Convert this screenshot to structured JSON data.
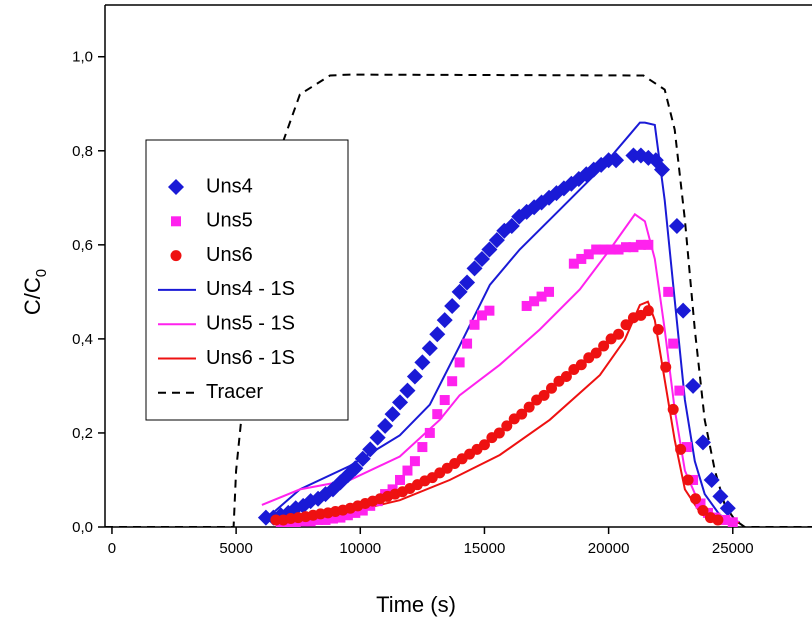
{
  "chart_data": {
    "type": "line",
    "xlabel": "Time (s)",
    "ylabel": "C/C",
    "ylabel_subscript": "0",
    "xlim": [
      -280,
      28190
    ],
    "ylim": [
      0,
      1.11
    ],
    "xticks": [
      0,
      5000,
      10000,
      15000,
      20000,
      25000
    ],
    "yticks": [
      {
        "value": 0,
        "label": "0,0"
      },
      {
        "value": 0.2,
        "label": "0,2"
      },
      {
        "value": 0.4,
        "label": "0,4"
      },
      {
        "value": 0.6,
        "label": "0,6"
      },
      {
        "value": 0.8,
        "label": "0,8"
      },
      {
        "value": 1.0,
        "label": "1,0"
      }
    ],
    "series": [
      {
        "name": "Uns4",
        "color": "#1a1ad6",
        "mode": "marker",
        "marker": "diamond",
        "x": [
          6200,
          6500,
          6800,
          7100,
          7400,
          7700,
          8000,
          8300,
          8600,
          8900,
          9200,
          9500,
          9800,
          10100,
          10400,
          10700,
          11000,
          11300,
          11600,
          11900,
          12200,
          12500,
          12800,
          13100,
          13400,
          13700,
          14000,
          14300,
          14600,
          14900,
          15200,
          15500,
          15800,
          16100,
          16400,
          16700,
          17000,
          17300,
          17600,
          17900,
          18200,
          18500,
          18800,
          19100,
          19400,
          19700,
          20000,
          20300,
          21000,
          21300,
          21600,
          21900,
          22150,
          22750,
          23000,
          23400,
          23800,
          24150,
          24500,
          24800
        ],
        "values": [
          0.02,
          0.02,
          0.025,
          0.03,
          0.04,
          0.045,
          0.055,
          0.06,
          0.07,
          0.08,
          0.095,
          0.11,
          0.125,
          0.145,
          0.165,
          0.19,
          0.215,
          0.24,
          0.265,
          0.29,
          0.32,
          0.35,
          0.38,
          0.41,
          0.44,
          0.47,
          0.5,
          0.52,
          0.55,
          0.57,
          0.59,
          0.61,
          0.63,
          0.64,
          0.66,
          0.67,
          0.68,
          0.69,
          0.7,
          0.71,
          0.72,
          0.73,
          0.74,
          0.75,
          0.76,
          0.77,
          0.78,
          0.78,
          0.79,
          0.79,
          0.785,
          0.78,
          0.76,
          0.64,
          0.46,
          0.3,
          0.18,
          0.1,
          0.065,
          0.04
        ]
      },
      {
        "name": "Uns5",
        "color": "#ff22ee",
        "mode": "marker",
        "marker": "square",
        "x": [
          6800,
          7100,
          7400,
          7700,
          8000,
          8300,
          8600,
          8900,
          9200,
          9500,
          9800,
          10100,
          10400,
          10700,
          11000,
          11300,
          11600,
          11900,
          12200,
          12500,
          12800,
          13100,
          13400,
          13700,
          14000,
          14300,
          14600,
          14900,
          15200,
          16700,
          17000,
          17300,
          17600,
          18600,
          18900,
          19200,
          19500,
          19800,
          20100,
          20400,
          20700,
          21000,
          21300,
          21600,
          22400,
          22600,
          22850,
          23150,
          23400,
          23700,
          24000,
          24300,
          24700,
          25000
        ],
        "values": [
          0.01,
          0.01,
          0.01,
          0.012,
          0.012,
          0.015,
          0.015,
          0.018,
          0.02,
          0.025,
          0.03,
          0.035,
          0.045,
          0.055,
          0.07,
          0.08,
          0.1,
          0.12,
          0.14,
          0.17,
          0.2,
          0.24,
          0.27,
          0.31,
          0.35,
          0.39,
          0.43,
          0.45,
          0.46,
          0.47,
          0.48,
          0.49,
          0.5,
          0.56,
          0.57,
          0.58,
          0.59,
          0.59,
          0.59,
          0.59,
          0.595,
          0.595,
          0.6,
          0.6,
          0.5,
          0.39,
          0.29,
          0.17,
          0.1,
          0.05,
          0.03,
          0.02,
          0.015,
          0.01
        ]
      },
      {
        "name": "Uns6",
        "color": "#ee1111",
        "mode": "marker",
        "marker": "circle",
        "x": [
          6600,
          6900,
          7200,
          7500,
          7800,
          8100,
          8400,
          8700,
          9000,
          9300,
          9600,
          9900,
          10200,
          10500,
          10800,
          11100,
          11400,
          11700,
          12000,
          12300,
          12600,
          12900,
          13200,
          13500,
          13800,
          14100,
          14400,
          14700,
          15000,
          15300,
          15600,
          15900,
          16200,
          16500,
          16800,
          17100,
          17400,
          17700,
          18000,
          18300,
          18600,
          18900,
          19200,
          19500,
          19800,
          20100,
          20400,
          20700,
          21000,
          21300,
          21600,
          22000,
          22300,
          22600,
          22900,
          23200,
          23500,
          23800,
          24100,
          24400
        ],
        "values": [
          0.015,
          0.015,
          0.018,
          0.02,
          0.022,
          0.025,
          0.028,
          0.03,
          0.033,
          0.036,
          0.04,
          0.045,
          0.05,
          0.055,
          0.06,
          0.065,
          0.07,
          0.075,
          0.082,
          0.09,
          0.098,
          0.105,
          0.115,
          0.125,
          0.135,
          0.145,
          0.155,
          0.165,
          0.175,
          0.19,
          0.2,
          0.215,
          0.23,
          0.24,
          0.255,
          0.27,
          0.28,
          0.295,
          0.31,
          0.32,
          0.335,
          0.345,
          0.36,
          0.37,
          0.385,
          0.4,
          0.41,
          0.43,
          0.445,
          0.45,
          0.46,
          0.42,
          0.34,
          0.25,
          0.165,
          0.1,
          0.06,
          0.035,
          0.02,
          0.015
        ]
      },
      {
        "name": "Uns4 - 1S",
        "color": "#1a1ad6",
        "mode": "line",
        "x": [
          6160,
          7570,
          9580,
          11590,
          12800,
          14000,
          15220,
          16420,
          18040,
          19650,
          20860,
          21260,
          21460,
          21860,
          22260,
          22660,
          23070,
          23470,
          23870,
          24480,
          25280
        ],
        "values": [
          0.015,
          0.08,
          0.13,
          0.195,
          0.26,
          0.385,
          0.515,
          0.59,
          0.675,
          0.76,
          0.835,
          0.86,
          0.86,
          0.855,
          0.695,
          0.483,
          0.27,
          0.14,
          0.07,
          0.025,
          0.01
        ]
      },
      {
        "name": "Uns5 - 1S",
        "color": "#ff22ee",
        "mode": "line",
        "x": [
          6040,
          7570,
          9580,
          11590,
          13200,
          14000,
          15620,
          17230,
          18840,
          20050,
          21060,
          21460,
          21860,
          22260,
          22660,
          23070,
          23670,
          24480,
          25280
        ],
        "values": [
          0.047,
          0.08,
          0.1,
          0.15,
          0.228,
          0.28,
          0.345,
          0.42,
          0.505,
          0.59,
          0.665,
          0.65,
          0.57,
          0.42,
          0.25,
          0.12,
          0.047,
          0.02,
          0.01
        ]
      },
      {
        "name": "Uns6 - 1S",
        "color": "#ee1111",
        "mode": "line",
        "x": [
          6700,
          7570,
          9580,
          11590,
          13600,
          15620,
          17630,
          19650,
          20650,
          21260,
          21580,
          21860,
          22260,
          22660,
          23070,
          23670,
          24480,
          25280
        ],
        "values": [
          0.015,
          0.02,
          0.032,
          0.057,
          0.1,
          0.153,
          0.228,
          0.323,
          0.398,
          0.472,
          0.479,
          0.44,
          0.313,
          0.185,
          0.08,
          0.032,
          0.015,
          0.008
        ]
      },
      {
        "name": "Tracer",
        "color": "#000000",
        "mode": "line",
        "dash": true,
        "x": [
          -280,
          4900,
          5000,
          5360,
          5760,
          6160,
          6760,
          7570,
          8780,
          9580,
          21400,
          22260,
          22660,
          23070,
          23470,
          23870,
          24280,
          24680,
          25080,
          25480,
          28190
        ],
        "values": [
          0,
          0,
          0.12,
          0.31,
          0.48,
          0.65,
          0.8,
          0.92,
          0.96,
          0.962,
          0.96,
          0.93,
          0.845,
          0.653,
          0.42,
          0.228,
          0.12,
          0.047,
          0.015,
          0,
          0
        ]
      }
    ]
  }
}
